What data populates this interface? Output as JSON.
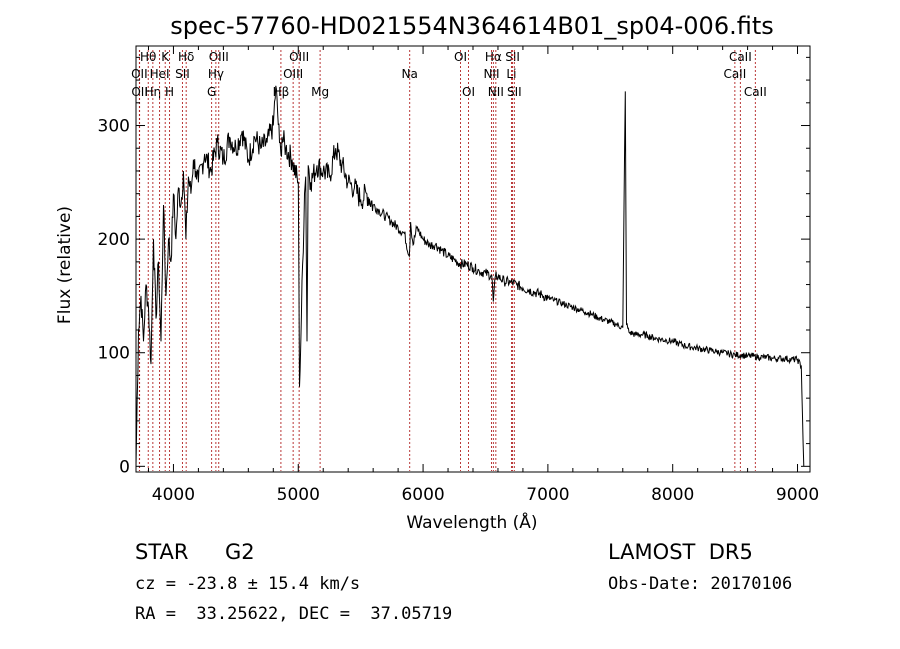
{
  "chart_data": {
    "type": "line",
    "title": "spec-57760-HD021554N364614B01_sp04-006.fits",
    "xlabel": "Wavelength (Å)",
    "ylabel": "Flux (relative)",
    "xlim": [
      3700,
      9100
    ],
    "ylim": [
      -5,
      370
    ],
    "x_ticks": [
      4000,
      5000,
      6000,
      7000,
      8000,
      9000
    ],
    "y_ticks": [
      0,
      100,
      200,
      300
    ],
    "grid": false,
    "series": [
      {
        "color": "#000000",
        "x": [
          3700,
          3720,
          3740,
          3760,
          3780,
          3800,
          3820,
          3840,
          3860,
          3880,
          3900,
          3920,
          3940,
          3960,
          3980,
          4000,
          4020,
          4040,
          4060,
          4080,
          4100,
          4120,
          4140,
          4160,
          4180,
          4200,
          4250,
          4300,
          4350,
          4400,
          4450,
          4500,
          4550,
          4600,
          4650,
          4700,
          4750,
          4800,
          4820,
          4850,
          4861,
          4870,
          4900,
          4950,
          5000,
          5010,
          5050,
          5060,
          5070,
          5080,
          5100,
          5150,
          5200,
          5250,
          5300,
          5350,
          5400,
          5450,
          5500,
          5550,
          5600,
          5650,
          5700,
          5750,
          5800,
          5850,
          5890,
          5900,
          5920,
          5950,
          6000,
          6050,
          6100,
          6150,
          6200,
          6250,
          6300,
          6350,
          6400,
          6450,
          6500,
          6550,
          6563,
          6580,
          6600,
          6650,
          6700,
          6750,
          6800,
          6850,
          6900,
          6950,
          7000,
          7050,
          7100,
          7150,
          7200,
          7250,
          7300,
          7350,
          7400,
          7450,
          7500,
          7550,
          7600,
          7620,
          7630,
          7650,
          7700,
          7750,
          7800,
          7850,
          7900,
          7950,
          8000,
          8050,
          8100,
          8150,
          8200,
          8250,
          8300,
          8350,
          8400,
          8450,
          8500,
          8550,
          8600,
          8650,
          8700,
          8750,
          8800,
          8850,
          8900,
          8950,
          9000,
          9030,
          9050
        ],
        "y": [
          0,
          120,
          150,
          110,
          160,
          140,
          90,
          200,
          130,
          180,
          110,
          230,
          150,
          200,
          180,
          240,
          200,
          245,
          230,
          260,
          200,
          255,
          240,
          270,
          260,
          250,
          275,
          260,
          285,
          270,
          290,
          280,
          295,
          270,
          290,
          280,
          285,
          300,
          335,
          285,
          275,
          290,
          280,
          270,
          250,
          70,
          240,
          255,
          110,
          265,
          250,
          265,
          260,
          255,
          280,
          265,
          250,
          245,
          235,
          240,
          230,
          225,
          220,
          215,
          210,
          205,
          185,
          215,
          195,
          210,
          200,
          195,
          195,
          190,
          185,
          182,
          178,
          178,
          175,
          172,
          170,
          168,
          145,
          168,
          167,
          163,
          162,
          160,
          157,
          155,
          153,
          151,
          148,
          146,
          144,
          142,
          140,
          138,
          136,
          134,
          131,
          129,
          127,
          125,
          122,
          330,
          125,
          118,
          116,
          116,
          115,
          113,
          112,
          111,
          110,
          108,
          106,
          105,
          104,
          103,
          102,
          101,
          100,
          99,
          98,
          98,
          97,
          97,
          96,
          96,
          95,
          95,
          95,
          94,
          94,
          88,
          0
        ]
      }
    ],
    "lines": [
      {
        "label": "Hθ",
        "x": 3798,
        "row": 1
      },
      {
        "label": "OII",
        "x": 3727,
        "row": 2
      },
      {
        "label": "OII",
        "x": 3729,
        "row": 3
      },
      {
        "label": "Hη",
        "x": 3835,
        "row": 3
      },
      {
        "label": "HeI",
        "x": 3889,
        "row": 2
      },
      {
        "label": "K",
        "x": 3934,
        "row": 1
      },
      {
        "label": "H",
        "x": 3969,
        "row": 3
      },
      {
        "label": "SII",
        "x": 4072,
        "row": 2
      },
      {
        "label": "Hδ",
        "x": 4102,
        "row": 1
      },
      {
        "label": "OIII",
        "x": 4363,
        "row": 1
      },
      {
        "label": "Hγ",
        "x": 4340,
        "row": 2
      },
      {
        "label": "G",
        "x": 4306,
        "row": 3
      },
      {
        "label": "Hβ",
        "x": 4861,
        "row": 3
      },
      {
        "label": "OIII",
        "x": 5007,
        "row": 1
      },
      {
        "label": "OIII",
        "x": 4959,
        "row": 2
      },
      {
        "label": "Mg",
        "x": 5175,
        "row": 3
      },
      {
        "label": "Na",
        "x": 5893,
        "row": 2
      },
      {
        "label": "OI",
        "x": 6300,
        "row": 1
      },
      {
        "label": "OI",
        "x": 6364,
        "row": 3
      },
      {
        "label": "Hα",
        "x": 6563,
        "row": 1
      },
      {
        "label": "NII",
        "x": 6548,
        "row": 2
      },
      {
        "label": "NII",
        "x": 6583,
        "row": 3
      },
      {
        "label": "SII",
        "x": 6717,
        "row": 1
      },
      {
        "label": "Li",
        "x": 6708,
        "row": 2
      },
      {
        "label": "SII",
        "x": 6731,
        "row": 3
      },
      {
        "label": "CaII",
        "x": 8542,
        "row": 1
      },
      {
        "label": "CaII",
        "x": 8498,
        "row": 2
      },
      {
        "label": "CaII",
        "x": 8662,
        "row": 3
      }
    ]
  },
  "info": {
    "star": "STAR",
    "subclass": "G2",
    "survey": "LAMOST  DR5",
    "cz": "cz = -23.8 ± 15.4 km/s",
    "obs_date": "Obs-Date: 20170106",
    "coords": "RA =  33.25622, DEC =  37.05719"
  }
}
